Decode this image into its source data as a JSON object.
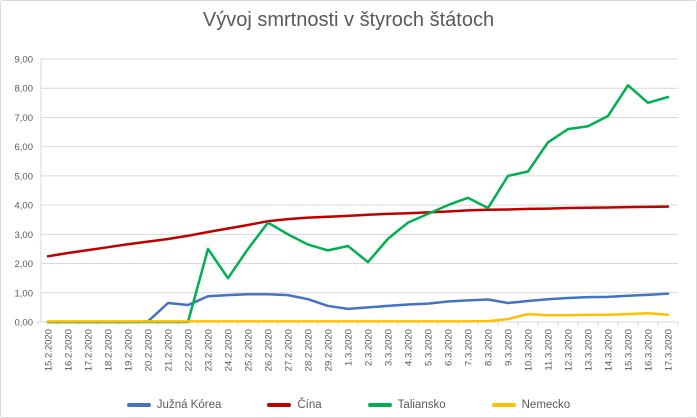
{
  "title": "Vývoj smrtnosti v štyroch štátoch",
  "colors": {
    "background": "#FFFFFF",
    "border": "#D9D9D9",
    "gridline": "#D9D9D9",
    "axis_line": "#D9D9D9",
    "title_text": "#595959",
    "axis_text": "#595959",
    "legend_text": "#595959"
  },
  "chart_data": {
    "type": "line",
    "title": "Vývoj smrtnosti v štyroch štátoch",
    "xlabel": "",
    "ylabel": "",
    "ylim": [
      0,
      9
    ],
    "grid": true,
    "legend_position": "bottom",
    "y_ticks": [
      "0,00",
      "1,00",
      "2,00",
      "3,00",
      "4,00",
      "5,00",
      "6,00",
      "7,00",
      "8,00",
      "9,00"
    ],
    "categories": [
      "15.2.2020",
      "16.2.2020",
      "17.2.2020",
      "18.2.2020",
      "19.2.2020",
      "20.2.2020",
      "21.2.2020",
      "22.2.2020",
      "23.2.2020",
      "24.2.2020",
      "25.2.2020",
      "26.2.2020",
      "27.2.2020",
      "28.2.2020",
      "29.2.2020",
      "1.3.2020",
      "2.3.2020",
      "3.3.2020",
      "4.3.2020",
      "5.3.2020",
      "6.3.2020",
      "7.3.2020",
      "8.3.2020",
      "9.3.2020",
      "10.3.2020",
      "11.3.2020",
      "12.3.2020",
      "13.3.2020",
      "14.3.2020",
      "15.3.2020",
      "16.3.2020",
      "17.3.2020"
    ],
    "series": [
      {
        "name": "Južná Kórea",
        "color": "#4472C4",
        "values": [
          0,
          0,
          0,
          0,
          0,
          0.02,
          0.65,
          0.58,
          0.88,
          0.92,
          0.95,
          0.95,
          0.92,
          0.78,
          0.55,
          0.45,
          0.5,
          0.55,
          0.6,
          0.63,
          0.7,
          0.74,
          0.77,
          0.65,
          0.72,
          0.78,
          0.82,
          0.85,
          0.86,
          0.9,
          0.93,
          0.97
        ]
      },
      {
        "name": "Čína",
        "color": "#C00000",
        "values": [
          2.25,
          2.36,
          2.46,
          2.56,
          2.66,
          2.75,
          2.84,
          2.95,
          3.08,
          3.2,
          3.32,
          3.45,
          3.52,
          3.57,
          3.6,
          3.63,
          3.67,
          3.7,
          3.72,
          3.75,
          3.78,
          3.82,
          3.84,
          3.85,
          3.87,
          3.88,
          3.9,
          3.91,
          3.92,
          3.93,
          3.94,
          3.95
        ]
      },
      {
        "name": "Taliansko",
        "color": "#00B050",
        "values": [
          0,
          0,
          0,
          0,
          0,
          0,
          0,
          0,
          2.5,
          1.5,
          2.5,
          3.4,
          3.0,
          2.65,
          2.45,
          2.6,
          2.05,
          2.85,
          3.4,
          3.7,
          4.0,
          4.25,
          3.9,
          5.0,
          5.15,
          6.15,
          6.6,
          6.7,
          7.05,
          8.1,
          7.5,
          7.7
        ]
      },
      {
        "name": "Nemecko",
        "color": "#FFC000",
        "values": [
          0.02,
          0.02,
          0.02,
          0.02,
          0.02,
          0.02,
          0.02,
          0.02,
          0.02,
          0.02,
          0.02,
          0.02,
          0.02,
          0.02,
          0.02,
          0.02,
          0.02,
          0.02,
          0.02,
          0.02,
          0.02,
          0.02,
          0.03,
          0.1,
          0.27,
          0.23,
          0.23,
          0.25,
          0.25,
          0.27,
          0.3,
          0.25
        ]
      }
    ]
  }
}
